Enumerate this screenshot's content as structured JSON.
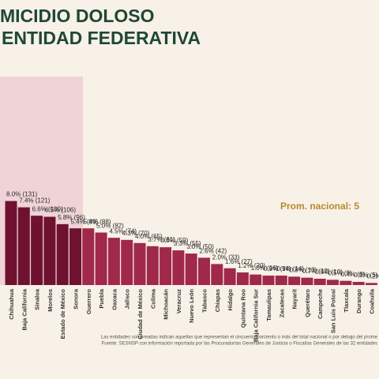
{
  "chart_data": {
    "type": "bar",
    "title": [
      "MICIDIO DOLOSO",
      "ENTIDAD FEDERATIVA"
    ],
    "categories": [
      "Chihuahua",
      "Baja California",
      "Sinaloa",
      "Morelos",
      "Estado de México",
      "Sonora",
      "Guerrero",
      "Puebla",
      "Oaxaca",
      "Jalisco",
      "Ciudad de México",
      "Colima",
      "Michoacán",
      "Veracruz",
      "Nuevo León",
      "Tabasco",
      "Chiapas",
      "Hidalgo",
      "Quintana Roo",
      "Baja California Sur",
      "Tamaulipas",
      "Zacatecas",
      "Nayarit",
      "Querétaro",
      "Campeche",
      "San Luis Potosí",
      "Tlaxcala",
      "Durango",
      "Coahuila"
    ],
    "values": [
      8.0,
      7.4,
      6.6,
      6.5,
      5.8,
      5.4,
      5.4,
      5.0,
      4.5,
      4.3,
      4.0,
      3.7,
      3.6,
      3.3,
      3.0,
      2.6,
      2.0,
      1.6,
      1.2,
      1.0,
      0.9,
      0.9,
      0.8,
      0.7,
      0.6,
      0.5,
      0.4,
      0.3,
      0.2
    ],
    "value_labels": [
      "8.0% (131)",
      "7.4% (121)",
      "6.6% (109)",
      "6.5% (106)",
      "5.8% (96)",
      "5.4% (89)",
      "5.4% (88)",
      "5.0% (82)",
      "4.5% (74)",
      "4.3% (70)",
      "4.0% (65)",
      "3.7% (61)",
      "3.6% (59)",
      "3.3% (55)",
      "3.0% (50)",
      "2.6% (42)",
      "2.0% (33)",
      "1.6% (27)",
      "1.2% (20)",
      "1.0% (16)",
      "0.9% (14)",
      "0.9% (14)",
      "0.8% (13)",
      "0.7% (12)",
      "0.6% (10)",
      "0.5% (9)",
      "0.4% (6)",
      "0.3% (5)",
      "0.2% (4)"
    ],
    "shaded_count": 6,
    "colors": {
      "shaded": "#6e1230",
      "other": "#a0284b"
    },
    "ylim": [
      0,
      20
    ],
    "annotation": "Prom. nacional: 5",
    "notes": [
      "Las entidades sombreadas indican aquellas que representan el cincuenta porciento o más del total nacional o por debajo del prome",
      "Fuente: SESNSP con información reportada por las Procuradurías Generales de Justicia o Fiscalías Generales de las 32 entidades"
    ]
  }
}
